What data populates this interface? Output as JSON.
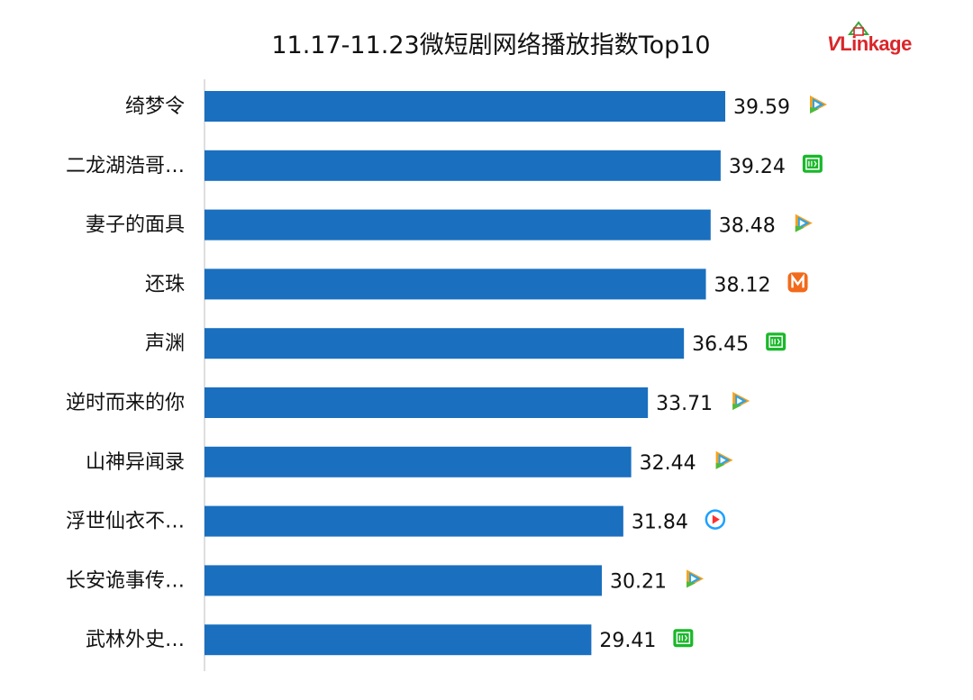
{
  "chart_data": {
    "type": "bar",
    "orientation": "horizontal",
    "title": "11.17-11.23微短剧网络播放指数Top10",
    "categories": [
      "绮梦令",
      "二龙湖浩哥…",
      "妻子的面具",
      "还珠",
      "声渊",
      "逆时而来的你",
      "山神异闻录",
      "浮世仙衣不…",
      "长安诡事传…",
      "武林外史…"
    ],
    "values": [
      39.59,
      39.24,
      38.48,
      38.12,
      36.45,
      33.71,
      32.44,
      31.84,
      30.21,
      29.41
    ],
    "value_labels": [
      "39.59",
      "39.24",
      "38.48",
      "38.12",
      "36.45",
      "33.71",
      "32.44",
      "31.84",
      "30.21",
      "29.41"
    ],
    "platforms": [
      "tencent",
      "iqiyi",
      "tencent",
      "mango",
      "iqiyi",
      "tencent",
      "tencent",
      "youku",
      "tencent",
      "iqiyi"
    ],
    "xlim": [
      0,
      40
    ],
    "grid": false,
    "legend": "none",
    "bar_color": "#1a6fbf"
  },
  "brand": {
    "logo_v": "V",
    "logo_rest": "Linkage",
    "logo_colors": {
      "red": "#d9262a",
      "green": "#3aa63d"
    }
  },
  "platform_icons": {
    "tencent": {
      "name": "tencent-video-icon",
      "colors": [
        "#f7a21b",
        "#2fa3e6",
        "#4dbb3a"
      ]
    },
    "iqiyi": {
      "name": "iqiyi-icon",
      "color": "#19b82a"
    },
    "mango": {
      "name": "mango-tv-icon",
      "color": "#f26a1b"
    },
    "youku": {
      "name": "youku-icon",
      "colors": [
        "#1ea0ff",
        "#ff2f2f"
      ]
    }
  }
}
